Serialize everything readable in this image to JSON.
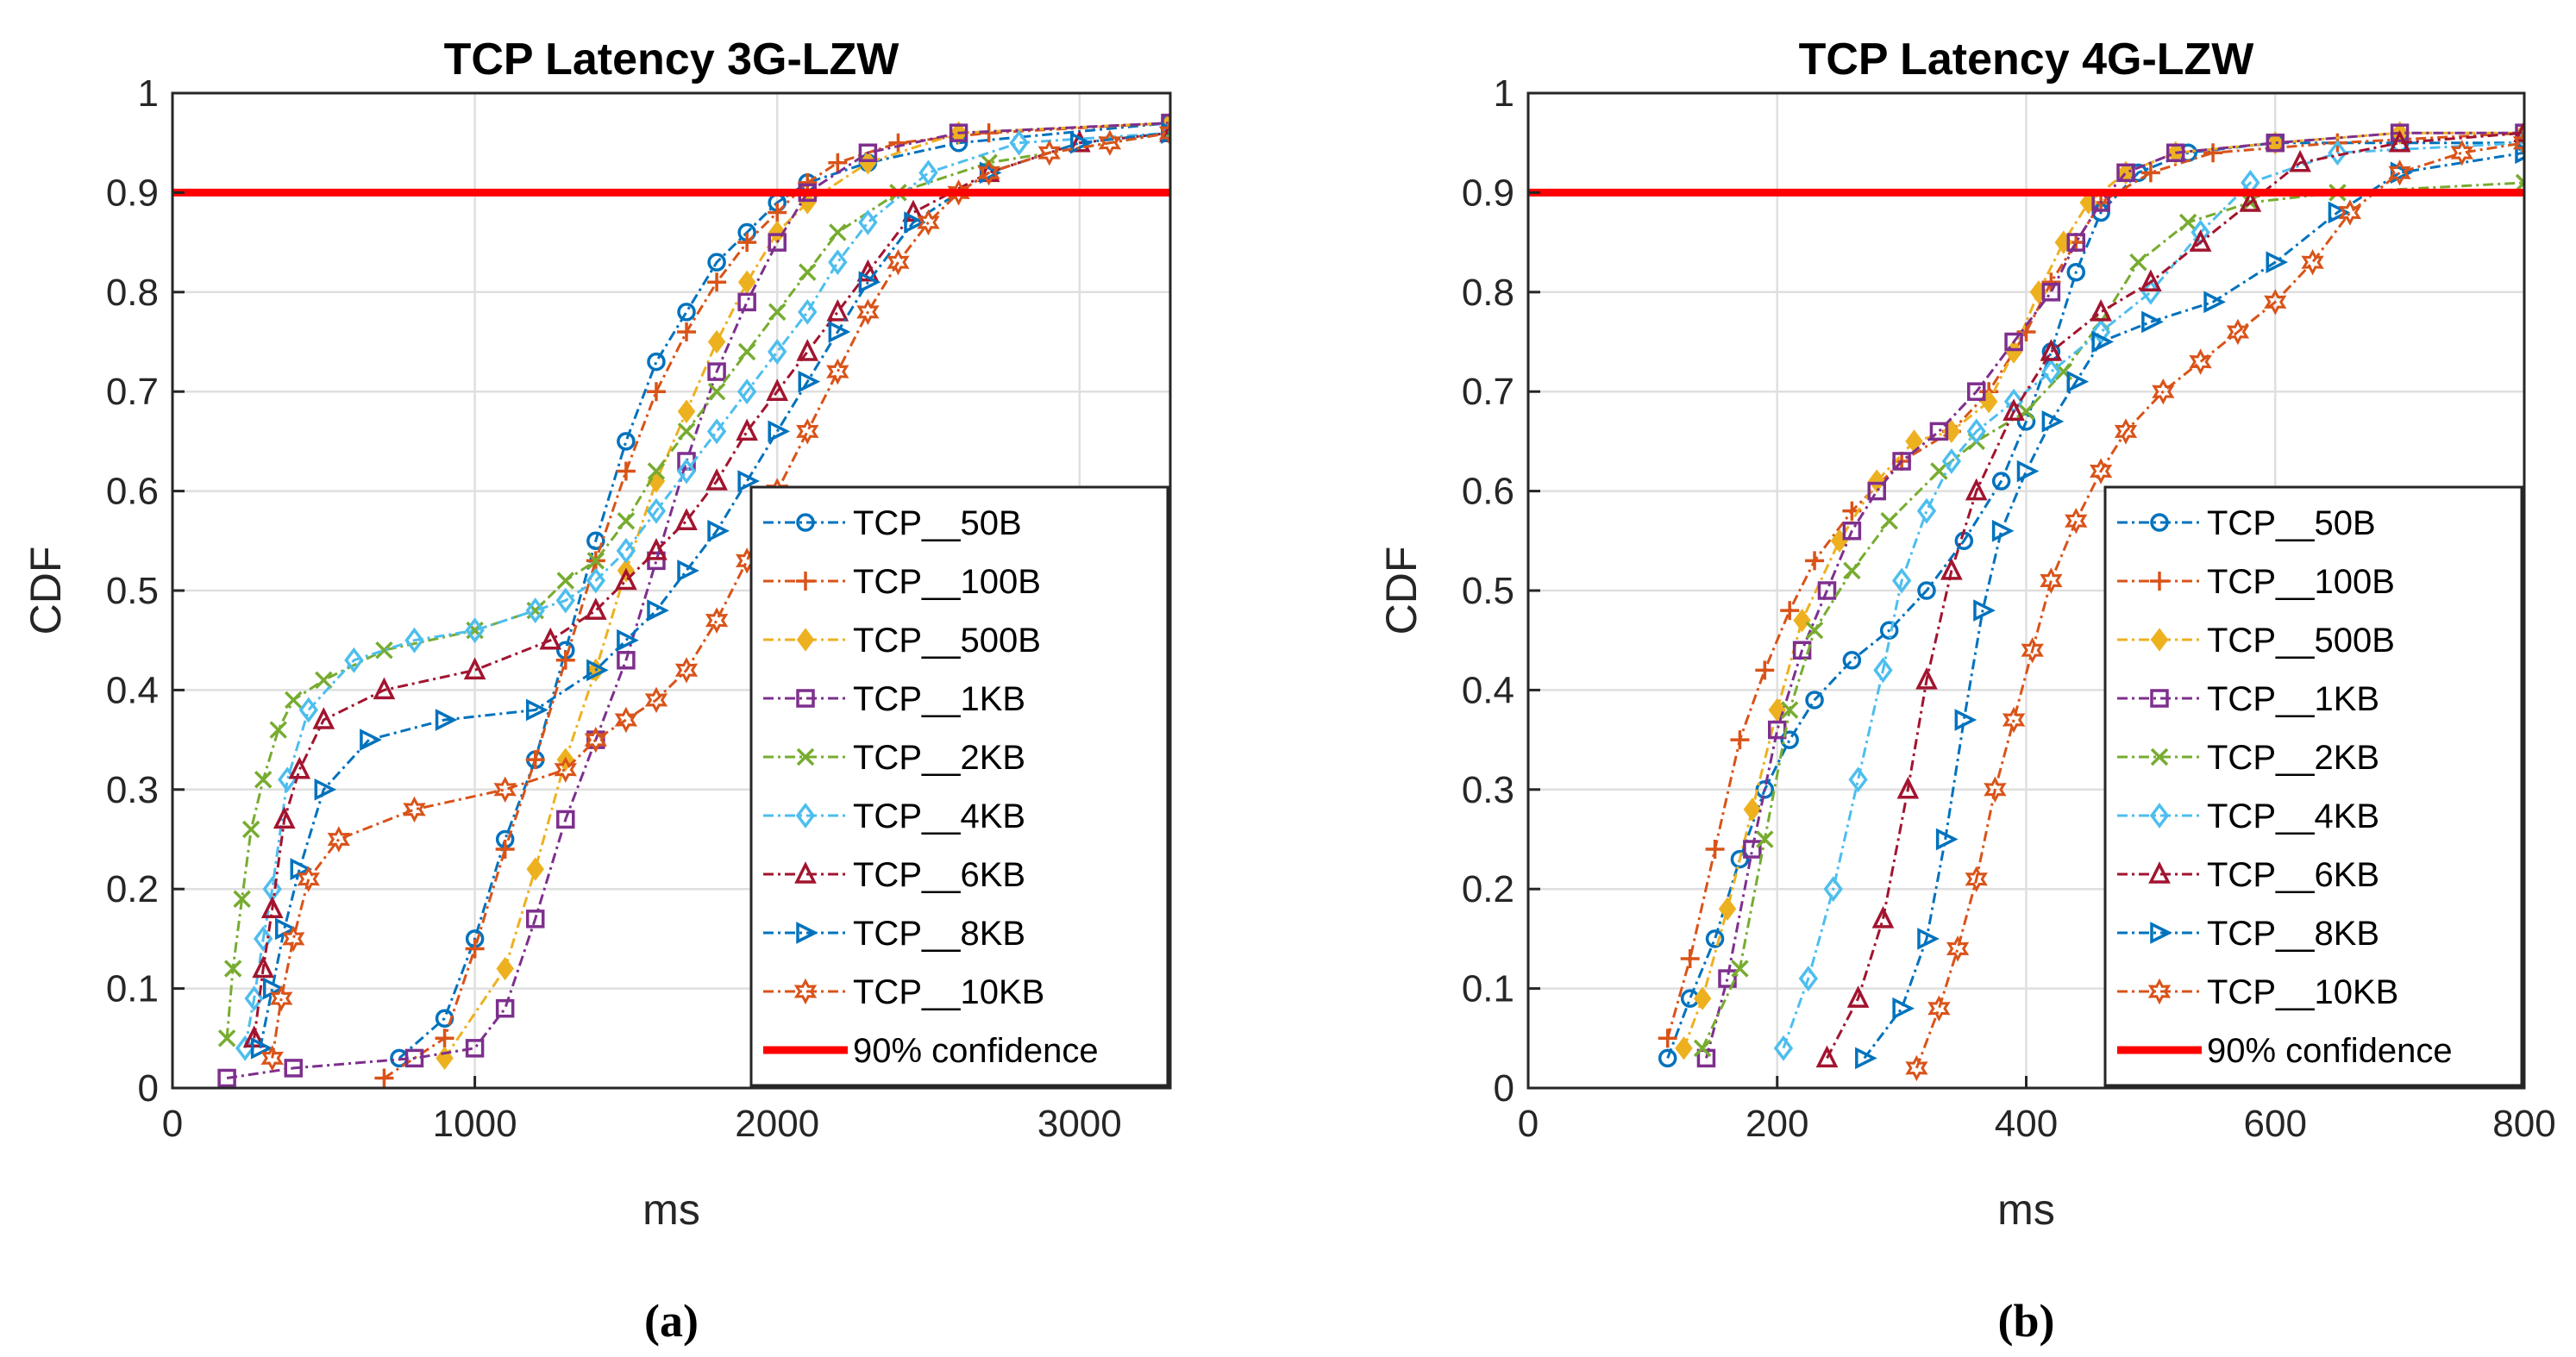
{
  "chart_data": [
    {
      "type": "line",
      "title": "TCP Latency 3G-LZW",
      "xlabel": "ms",
      "ylabel": "CDF",
      "xlim": [
        0,
        3300
      ],
      "ylim": [
        0,
        1
      ],
      "xticks": [
        0,
        1000,
        2000,
        3000
      ],
      "yticks": [
        0,
        0.1,
        0.2,
        0.3,
        0.4,
        0.5,
        0.6,
        0.7,
        0.8,
        0.9,
        1
      ],
      "ytick_labels": [
        "0",
        "0.1",
        "0.2",
        "0.3",
        "0.4",
        "0.5",
        "0.6",
        "0.7",
        "0.8",
        "0.9",
        "1"
      ],
      "grid": true,
      "legend_position": "bottom-right",
      "caption": "(a)",
      "reference_line": {
        "y": 0.9,
        "label": "90% confidence",
        "color": "#ff0000"
      },
      "series": [
        {
          "name": "TCP__50B",
          "color": "#0072bd",
          "marker": "circle",
          "x": [
            750,
            900,
            1000,
            1100,
            1200,
            1300,
            1400,
            1500,
            1600,
            1700,
            1800,
            1900,
            2000,
            2100,
            2300,
            2600,
            3300
          ],
          "y": [
            0.03,
            0.07,
            0.15,
            0.25,
            0.33,
            0.44,
            0.55,
            0.65,
            0.73,
            0.78,
            0.83,
            0.86,
            0.89,
            0.91,
            0.93,
            0.95,
            0.97
          ]
        },
        {
          "name": "TCP__100B",
          "color": "#d95319",
          "marker": "plus",
          "x": [
            700,
            900,
            1000,
            1100,
            1200,
            1300,
            1400,
            1500,
            1600,
            1700,
            1800,
            1900,
            2000,
            2100,
            2200,
            2400,
            2700,
            3300
          ],
          "y": [
            0.01,
            0.05,
            0.14,
            0.24,
            0.33,
            0.43,
            0.53,
            0.62,
            0.7,
            0.76,
            0.81,
            0.85,
            0.88,
            0.91,
            0.93,
            0.95,
            0.96,
            0.97
          ]
        },
        {
          "name": "TCP__500B",
          "color": "#edb120",
          "marker": "diamond-filled",
          "x": [
            900,
            1100,
            1200,
            1300,
            1400,
            1500,
            1600,
            1700,
            1800,
            1900,
            2000,
            2100,
            2300,
            2600,
            3300
          ],
          "y": [
            0.03,
            0.12,
            0.22,
            0.33,
            0.42,
            0.52,
            0.61,
            0.68,
            0.75,
            0.81,
            0.86,
            0.89,
            0.93,
            0.96,
            0.97
          ]
        },
        {
          "name": "TCP__1KB",
          "color": "#7e2f8e",
          "marker": "square",
          "x": [
            180,
            400,
            800,
            1000,
            1100,
            1200,
            1300,
            1400,
            1500,
            1600,
            1700,
            1800,
            1900,
            2000,
            2100,
            2300,
            2600,
            3300
          ],
          "y": [
            0.01,
            0.02,
            0.03,
            0.04,
            0.08,
            0.17,
            0.27,
            0.35,
            0.43,
            0.53,
            0.63,
            0.72,
            0.79,
            0.85,
            0.9,
            0.94,
            0.96,
            0.97
          ]
        },
        {
          "name": "TCP__2KB",
          "color": "#77ac30",
          "marker": "x",
          "x": [
            180,
            200,
            230,
            260,
            300,
            350,
            400,
            500,
            700,
            1000,
            1200,
            1300,
            1400,
            1500,
            1600,
            1700,
            1800,
            1900,
            2000,
            2100,
            2200,
            2400,
            2700,
            3300
          ],
          "y": [
            0.05,
            0.12,
            0.19,
            0.26,
            0.31,
            0.36,
            0.39,
            0.41,
            0.44,
            0.46,
            0.48,
            0.51,
            0.53,
            0.57,
            0.62,
            0.66,
            0.7,
            0.74,
            0.78,
            0.82,
            0.86,
            0.9,
            0.93,
            0.96
          ]
        },
        {
          "name": "TCP__4KB",
          "color": "#4dbeee",
          "marker": "diamond",
          "x": [
            240,
            270,
            300,
            330,
            380,
            450,
            600,
            800,
            1000,
            1200,
            1300,
            1400,
            1500,
            1600,
            1700,
            1800,
            1900,
            2000,
            2100,
            2200,
            2300,
            2500,
            2800,
            3300
          ],
          "y": [
            0.04,
            0.09,
            0.15,
            0.2,
            0.31,
            0.38,
            0.43,
            0.45,
            0.46,
            0.48,
            0.49,
            0.51,
            0.54,
            0.58,
            0.62,
            0.66,
            0.7,
            0.74,
            0.78,
            0.83,
            0.87,
            0.92,
            0.95,
            0.96
          ]
        },
        {
          "name": "TCP__6KB",
          "color": "#a2142f",
          "marker": "triangle-up",
          "x": [
            270,
            300,
            330,
            370,
            420,
            500,
            700,
            1000,
            1250,
            1400,
            1500,
            1600,
            1700,
            1800,
            1900,
            2000,
            2100,
            2200,
            2300,
            2450,
            2700,
            3000,
            3300
          ],
          "y": [
            0.05,
            0.12,
            0.18,
            0.27,
            0.32,
            0.37,
            0.4,
            0.42,
            0.45,
            0.48,
            0.51,
            0.54,
            0.57,
            0.61,
            0.66,
            0.7,
            0.74,
            0.78,
            0.82,
            0.88,
            0.92,
            0.95,
            0.96
          ]
        },
        {
          "name": "TCP__8KB",
          "color": "#0072bd",
          "marker": "triangle-right",
          "x": [
            290,
            330,
            370,
            420,
            500,
            650,
            900,
            1200,
            1400,
            1500,
            1600,
            1700,
            1800,
            1900,
            2000,
            2100,
            2200,
            2300,
            2450,
            2700,
            3000,
            3300
          ],
          "y": [
            0.04,
            0.1,
            0.16,
            0.22,
            0.3,
            0.35,
            0.37,
            0.38,
            0.42,
            0.45,
            0.48,
            0.52,
            0.56,
            0.61,
            0.66,
            0.71,
            0.76,
            0.81,
            0.87,
            0.92,
            0.95,
            0.96
          ]
        },
        {
          "name": "TCP__10KB",
          "color": "#d95319",
          "marker": "hexagram",
          "x": [
            330,
            360,
            400,
            450,
            550,
            800,
            1100,
            1300,
            1400,
            1500,
            1600,
            1700,
            1800,
            1900,
            2000,
            2100,
            2200,
            2300,
            2400,
            2500,
            2600,
            2700,
            2900,
            3100,
            3300
          ],
          "y": [
            0.03,
            0.09,
            0.15,
            0.21,
            0.25,
            0.28,
            0.3,
            0.32,
            0.35,
            0.37,
            0.39,
            0.42,
            0.47,
            0.53,
            0.6,
            0.66,
            0.72,
            0.78,
            0.83,
            0.87,
            0.9,
            0.92,
            0.94,
            0.95,
            0.96
          ]
        }
      ]
    },
    {
      "type": "line",
      "title": "TCP Latency 4G-LZW",
      "xlabel": "ms",
      "ylabel": "CDF",
      "xlim": [
        0,
        800
      ],
      "ylim": [
        0,
        1
      ],
      "xticks": [
        0,
        200,
        400,
        600,
        800
      ],
      "yticks": [
        0,
        0.1,
        0.2,
        0.3,
        0.4,
        0.5,
        0.6,
        0.7,
        0.8,
        0.9,
        1
      ],
      "ytick_labels": [
        "0",
        "0.1",
        "0.2",
        "0.3",
        "0.4",
        "0.5",
        "0.6",
        "0.7",
        "0.8",
        "0.9",
        "1"
      ],
      "grid": true,
      "legend_position": "bottom-right",
      "caption": "(b)",
      "reference_line": {
        "y": 0.9,
        "label": "90% confidence",
        "color": "#ff0000"
      },
      "series": [
        {
          "name": "TCP__50B",
          "color": "#0072bd",
          "marker": "circle",
          "x": [
            112,
            130,
            150,
            170,
            190,
            210,
            230,
            260,
            290,
            320,
            350,
            380,
            400,
            420,
            440,
            460,
            490,
            530,
            600,
            700,
            800
          ],
          "y": [
            0.03,
            0.09,
            0.15,
            0.23,
            0.3,
            0.35,
            0.39,
            0.43,
            0.46,
            0.5,
            0.55,
            0.61,
            0.67,
            0.74,
            0.82,
            0.88,
            0.92,
            0.94,
            0.95,
            0.95,
            0.95
          ]
        },
        {
          "name": "TCP__100B",
          "color": "#d95319",
          "marker": "plus",
          "x": [
            112,
            130,
            150,
            170,
            190,
            210,
            230,
            260,
            300,
            340,
            370,
            400,
            420,
            440,
            460,
            500,
            550,
            650,
            800
          ],
          "y": [
            0.05,
            0.13,
            0.24,
            0.35,
            0.42,
            0.48,
            0.53,
            0.58,
            0.63,
            0.66,
            0.7,
            0.76,
            0.81,
            0.85,
            0.89,
            0.92,
            0.94,
            0.95,
            0.96
          ]
        },
        {
          "name": "TCP__500B",
          "color": "#edb120",
          "marker": "diamond-filled",
          "x": [
            125,
            140,
            160,
            180,
            200,
            220,
            250,
            280,
            310,
            340,
            370,
            390,
            410,
            430,
            450,
            480,
            520,
            600,
            700,
            800
          ],
          "y": [
            0.04,
            0.09,
            0.18,
            0.28,
            0.38,
            0.47,
            0.55,
            0.61,
            0.65,
            0.66,
            0.69,
            0.74,
            0.8,
            0.85,
            0.89,
            0.92,
            0.94,
            0.95,
            0.96,
            0.96
          ]
        },
        {
          "name": "TCP__1KB",
          "color": "#7e2f8e",
          "marker": "square",
          "x": [
            143,
            160,
            180,
            200,
            220,
            240,
            260,
            280,
            300,
            330,
            360,
            390,
            420,
            440,
            460,
            480,
            520,
            600,
            700,
            800
          ],
          "y": [
            0.03,
            0.11,
            0.24,
            0.36,
            0.44,
            0.5,
            0.56,
            0.6,
            0.63,
            0.66,
            0.7,
            0.75,
            0.8,
            0.85,
            0.89,
            0.92,
            0.94,
            0.95,
            0.96,
            0.96
          ]
        },
        {
          "name": "TCP__2KB",
          "color": "#77ac30",
          "marker": "x",
          "x": [
            140,
            170,
            190,
            210,
            230,
            260,
            290,
            330,
            360,
            400,
            430,
            460,
            490,
            530,
            580,
            650,
            800
          ],
          "y": [
            0.04,
            0.12,
            0.25,
            0.38,
            0.46,
            0.52,
            0.57,
            0.62,
            0.65,
            0.68,
            0.72,
            0.77,
            0.83,
            0.87,
            0.89,
            0.9,
            0.91
          ]
        },
        {
          "name": "TCP__4KB",
          "color": "#4dbeee",
          "marker": "diamond",
          "x": [
            205,
            225,
            245,
            265,
            285,
            300,
            320,
            340,
            360,
            390,
            420,
            460,
            500,
            540,
            580,
            650,
            800
          ],
          "y": [
            0.04,
            0.11,
            0.2,
            0.31,
            0.42,
            0.51,
            0.58,
            0.63,
            0.66,
            0.69,
            0.72,
            0.76,
            0.8,
            0.86,
            0.91,
            0.94,
            0.95
          ]
        },
        {
          "name": "TCP__6KB",
          "color": "#a2142f",
          "marker": "triangle-up",
          "x": [
            240,
            265,
            285,
            305,
            320,
            340,
            360,
            390,
            420,
            460,
            500,
            540,
            580,
            620,
            700,
            800
          ],
          "y": [
            0.03,
            0.09,
            0.17,
            0.3,
            0.41,
            0.52,
            0.6,
            0.68,
            0.74,
            0.78,
            0.81,
            0.85,
            0.89,
            0.93,
            0.95,
            0.96
          ]
        },
        {
          "name": "TCP__8KB",
          "color": "#0072bd",
          "marker": "triangle-right",
          "x": [
            270,
            300,
            320,
            335,
            350,
            365,
            380,
            400,
            420,
            440,
            460,
            500,
            550,
            600,
            650,
            700,
            800
          ],
          "y": [
            0.03,
            0.08,
            0.15,
            0.25,
            0.37,
            0.48,
            0.56,
            0.62,
            0.67,
            0.71,
            0.75,
            0.77,
            0.79,
            0.83,
            0.88,
            0.92,
            0.94
          ]
        },
        {
          "name": "TCP__10KB",
          "color": "#d95319",
          "marker": "hexagram",
          "x": [
            312,
            330,
            345,
            360,
            375,
            390,
            405,
            420,
            440,
            460,
            480,
            510,
            540,
            570,
            600,
            630,
            660,
            700,
            750,
            800
          ],
          "y": [
            0.02,
            0.08,
            0.14,
            0.21,
            0.3,
            0.37,
            0.44,
            0.51,
            0.57,
            0.62,
            0.66,
            0.7,
            0.73,
            0.76,
            0.79,
            0.83,
            0.88,
            0.92,
            0.94,
            0.95
          ]
        }
      ]
    }
  ]
}
